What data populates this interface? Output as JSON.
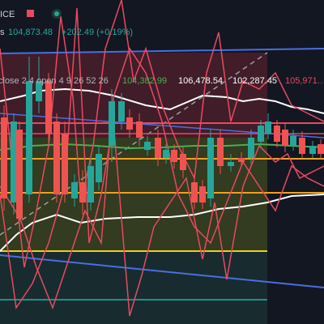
{
  "header": {
    "symbol": "ICE",
    "unit_fragment": "s",
    "price": "104,873.48",
    "change": "+202.49 (+0.19%)"
  },
  "indicator": {
    "label": "close 2 4 open 4 9 26 52 26",
    "values": [
      "104,382.99",
      "106,478.54",
      "102,287.45",
      "105,971.…"
    ]
  }
}
